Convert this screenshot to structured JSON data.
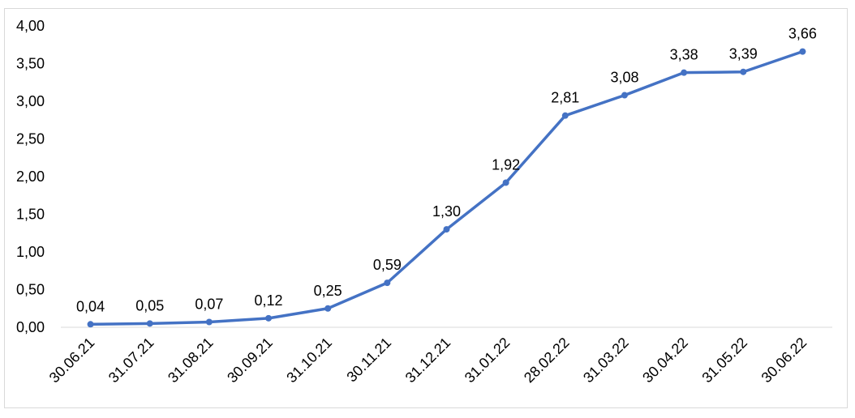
{
  "chart_data": {
    "type": "line",
    "title": "",
    "xlabel": "",
    "ylabel": "",
    "ylim": [
      0,
      4
    ],
    "yticks": [
      "0,00",
      "0,50",
      "1,00",
      "1,50",
      "2,00",
      "2,50",
      "3,00",
      "3,50",
      "4,00"
    ],
    "grid": false,
    "legend": "none",
    "categories": [
      "30.06.21",
      "31.07.21",
      "31.08.21",
      "30.09.21",
      "31.10.21",
      "30.11.21",
      "31.12.21",
      "31.01.22",
      "28.02.22",
      "31.03.22",
      "30.04.22",
      "31.05.22",
      "30.06.22"
    ],
    "series": [
      {
        "color": "#4472c4",
        "values": [
          0.04,
          0.05,
          0.07,
          0.12,
          0.25,
          0.59,
          1.3,
          1.92,
          2.81,
          3.08,
          3.38,
          3.39,
          3.66
        ],
        "labels": [
          "0,04",
          "0,05",
          "0,07",
          "0,12",
          "0,25",
          "0,59",
          "1,30",
          "1,92",
          "2,81",
          "3,08",
          "3,38",
          "3,39",
          "3,66"
        ]
      }
    ],
    "axis_color": "#d9d9d9"
  }
}
